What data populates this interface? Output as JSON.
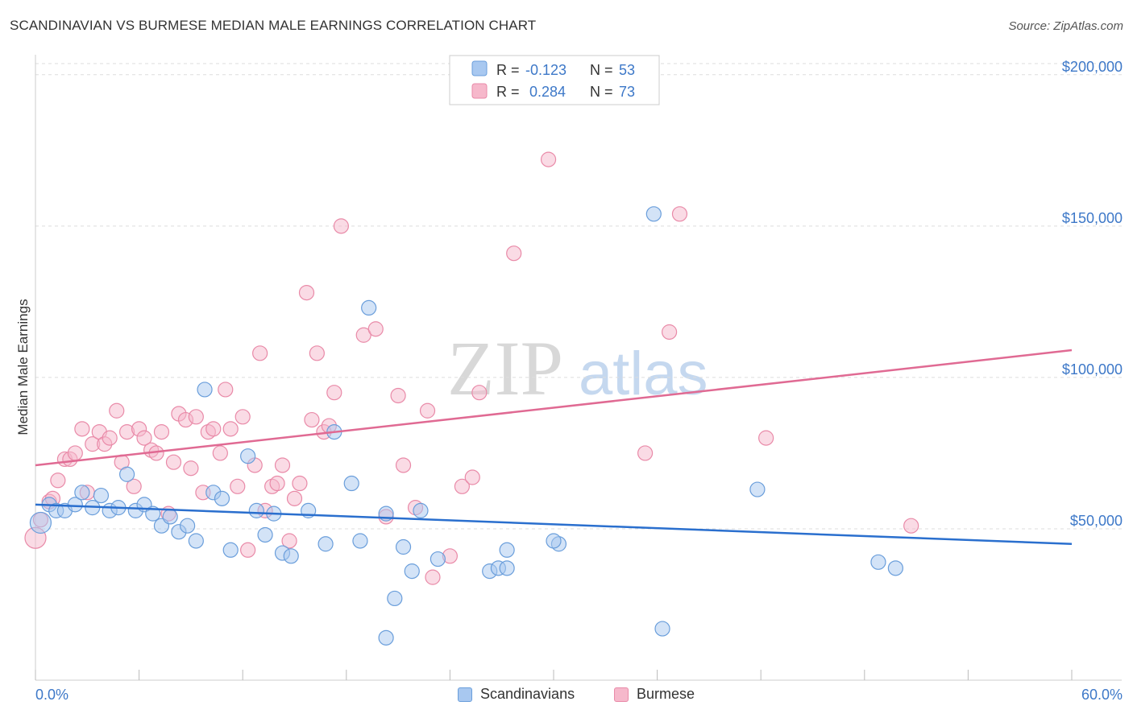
{
  "title": "SCANDINAVIAN VS BURMESE MEDIAN MALE EARNINGS CORRELATION CHART",
  "source": "Source: ZipAtlas.com",
  "watermark": {
    "zip": "ZIP",
    "atlas": "atlas"
  },
  "colors": {
    "blue_fill": "#a8c8f0",
    "blue_stroke": "#6a9edb",
    "blue_line": "#2a6fce",
    "pink_fill": "#f6b8cb",
    "pink_stroke": "#e98aa8",
    "pink_line": "#e06a93",
    "tick": "#3d78c8",
    "grid": "#dddddd"
  },
  "legend": {
    "rows": [
      {
        "r_label": "R =",
        "r_value": "-0.123",
        "n_label": "N =",
        "n_value": "53",
        "series": "Scandinavians"
      },
      {
        "r_label": "R =",
        "r_value": " 0.284",
        "n_label": "N =",
        "n_value": "73",
        "series": "Burmese"
      }
    ]
  },
  "bottom_legend": {
    "items": [
      "Scandinavians",
      "Burmese"
    ]
  },
  "chart_data": {
    "type": "scatter",
    "title": "SCANDINAVIAN VS BURMESE MEDIAN MALE EARNINGS CORRELATION CHART",
    "xlabel": "",
    "ylabel": "Median Male Earnings",
    "xlim": [
      0,
      60
    ],
    "ylim": [
      0,
      205000
    ],
    "x_tick_labels": [
      "0.0%",
      "60.0%"
    ],
    "y_ticks": [
      {
        "value": 50000,
        "label": "$50,000"
      },
      {
        "value": 100000,
        "label": "$100,000"
      },
      {
        "value": 150000,
        "label": "$150,000"
      },
      {
        "value": 200000,
        "label": "$200,000"
      }
    ],
    "series": [
      {
        "name": "Scandinavians",
        "R": -0.123,
        "N": 53,
        "trend": {
          "x": [
            0,
            60
          ],
          "y": [
            58000,
            45000
          ]
        },
        "points": [
          [
            0.3,
            52000
          ],
          [
            0.8,
            58000
          ],
          [
            1.2,
            56000
          ],
          [
            1.7,
            56000
          ],
          [
            2.3,
            58000
          ],
          [
            2.7,
            62000
          ],
          [
            3.3,
            57000
          ],
          [
            3.8,
            61000
          ],
          [
            4.3,
            56000
          ],
          [
            4.8,
            57000
          ],
          [
            5.3,
            68000
          ],
          [
            5.8,
            56000
          ],
          [
            6.3,
            58000
          ],
          [
            6.8,
            55000
          ],
          [
            7.3,
            51000
          ],
          [
            7.8,
            54000
          ],
          [
            8.3,
            49000
          ],
          [
            8.8,
            51000
          ],
          [
            9.3,
            46000
          ],
          [
            9.8,
            96000
          ],
          [
            10.3,
            62000
          ],
          [
            10.8,
            60000
          ],
          [
            11.3,
            43000
          ],
          [
            12.3,
            74000
          ],
          [
            12.8,
            56000
          ],
          [
            13.3,
            48000
          ],
          [
            13.8,
            55000
          ],
          [
            14.3,
            42000
          ],
          [
            14.8,
            41000
          ],
          [
            15.8,
            56000
          ],
          [
            16.8,
            45000
          ],
          [
            17.3,
            82000
          ],
          [
            18.3,
            65000
          ],
          [
            18.8,
            46000
          ],
          [
            19.3,
            123000
          ],
          [
            20.3,
            55000
          ],
          [
            20.3,
            14000
          ],
          [
            20.8,
            27000
          ],
          [
            21.3,
            44000
          ],
          [
            21.8,
            36000
          ],
          [
            22.3,
            56000
          ],
          [
            23.3,
            40000
          ],
          [
            26.3,
            36000
          ],
          [
            26.8,
            37000
          ],
          [
            27.3,
            43000
          ],
          [
            27.3,
            37000
          ],
          [
            30.3,
            45000
          ],
          [
            35.8,
            154000
          ],
          [
            36.3,
            17000
          ],
          [
            41.8,
            63000
          ],
          [
            48.8,
            39000
          ],
          [
            49.8,
            37000
          ],
          [
            30.0,
            46000
          ]
        ]
      },
      {
        "name": "Burmese",
        "R": 0.284,
        "N": 73,
        "trend": {
          "x": [
            0,
            60
          ],
          "y": [
            71000,
            109000
          ]
        },
        "points": [
          [
            0.0,
            47000
          ],
          [
            0.3,
            53000
          ],
          [
            0.8,
            59000
          ],
          [
            1.0,
            60000
          ],
          [
            1.3,
            66000
          ],
          [
            1.7,
            73000
          ],
          [
            2.0,
            73000
          ],
          [
            2.3,
            75000
          ],
          [
            2.7,
            83000
          ],
          [
            3.0,
            62000
          ],
          [
            3.3,
            78000
          ],
          [
            3.7,
            82000
          ],
          [
            4.0,
            78000
          ],
          [
            4.3,
            80000
          ],
          [
            4.7,
            89000
          ],
          [
            5.0,
            72000
          ],
          [
            5.3,
            82000
          ],
          [
            5.7,
            64000
          ],
          [
            6.0,
            83000
          ],
          [
            6.3,
            80000
          ],
          [
            6.7,
            76000
          ],
          [
            7.0,
            75000
          ],
          [
            7.3,
            82000
          ],
          [
            7.7,
            55000
          ],
          [
            8.0,
            72000
          ],
          [
            8.3,
            88000
          ],
          [
            8.7,
            86000
          ],
          [
            9.0,
            70000
          ],
          [
            9.3,
            87000
          ],
          [
            9.7,
            62000
          ],
          [
            10.0,
            82000
          ],
          [
            10.3,
            83000
          ],
          [
            10.7,
            75000
          ],
          [
            11.0,
            96000
          ],
          [
            11.3,
            83000
          ],
          [
            11.7,
            64000
          ],
          [
            12.0,
            87000
          ],
          [
            12.3,
            43000
          ],
          [
            12.7,
            71000
          ],
          [
            13.0,
            108000
          ],
          [
            13.3,
            56000
          ],
          [
            13.7,
            64000
          ],
          [
            14.0,
            65000
          ],
          [
            14.3,
            71000
          ],
          [
            14.7,
            46000
          ],
          [
            15.0,
            60000
          ],
          [
            15.3,
            65000
          ],
          [
            15.7,
            128000
          ],
          [
            16.0,
            86000
          ],
          [
            16.3,
            108000
          ],
          [
            16.7,
            82000
          ],
          [
            17.0,
            84000
          ],
          [
            17.3,
            95000
          ],
          [
            17.7,
            150000
          ],
          [
            19.0,
            114000
          ],
          [
            19.7,
            116000
          ],
          [
            20.3,
            54000
          ],
          [
            21.0,
            94000
          ],
          [
            21.3,
            71000
          ],
          [
            22.0,
            57000
          ],
          [
            22.7,
            89000
          ],
          [
            23.0,
            34000
          ],
          [
            24.0,
            41000
          ],
          [
            24.7,
            64000
          ],
          [
            25.3,
            67000
          ],
          [
            25.7,
            95000
          ],
          [
            27.7,
            141000
          ],
          [
            29.7,
            172000
          ],
          [
            35.3,
            75000
          ],
          [
            36.7,
            115000
          ],
          [
            37.3,
            154000
          ],
          [
            42.3,
            80000
          ],
          [
            50.7,
            51000
          ]
        ]
      }
    ]
  }
}
